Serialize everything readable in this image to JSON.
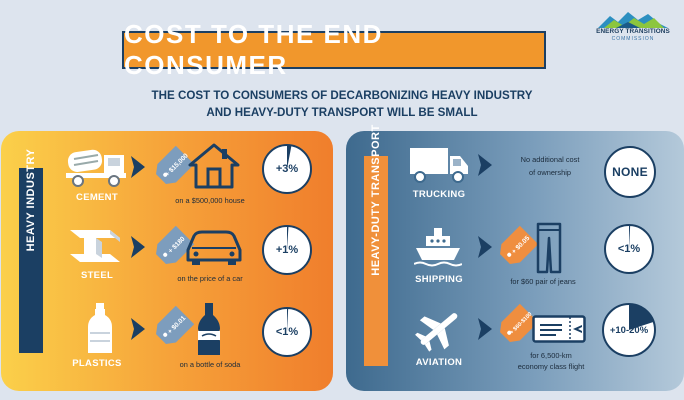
{
  "logo": {
    "line1": "ENERGY TRANSITIONS",
    "line2": "COMMISSION"
  },
  "title": "COST TO THE END CONSUMER",
  "subtitle": {
    "line1": "THE COST TO CONSUMERS OF DECARBONIZING HEAVY INDUSTRY",
    "line2": "AND HEAVY-DUTY TRANSPORT WILL BE SMALL"
  },
  "heavy_industry": {
    "label": "HEAVY INDUSTRY",
    "rows": [
      {
        "name": "CEMENT",
        "icon": "cement-mixer-truck-icon",
        "target_icon": "house-icon",
        "tag": "+ $15,000",
        "desc": "on a $500,000 house",
        "pct_label": "+3%",
        "fraction": 0.03
      },
      {
        "name": "STEEL",
        "icon": "steel-beam-icon",
        "target_icon": "car-icon",
        "tag": "+ $180",
        "desc": "on the price of a car",
        "pct_label": "+1%",
        "fraction": 0.01
      },
      {
        "name": "PLASTICS",
        "icon": "plastic-bottle-icon",
        "target_icon": "soda-bottle-icon",
        "tag": "+ $0.01",
        "desc": "on a bottle of soda",
        "pct_label": "<1%",
        "fraction": 0.008
      }
    ]
  },
  "heavy_duty_transport": {
    "label": "HEAVY-DUTY TRANSPORT",
    "rows": [
      {
        "name": "TRUCKING",
        "icon": "truck-icon",
        "desc1": "No additional cost",
        "desc2": "of ownership",
        "pct_label": "NONE",
        "fraction": 0
      },
      {
        "name": "SHIPPING",
        "icon": "ship-icon",
        "target_icon": "jeans-icon",
        "tag": "+ $0.05",
        "desc1": "for $60 pair of jeans",
        "desc2": "",
        "pct_label": "<1%",
        "fraction": 0.008
      },
      {
        "name": "AVIATION",
        "icon": "airplane-icon",
        "target_icon": "boarding-pass-icon",
        "tag": "+ $60-$100",
        "desc1": "for 6,500-km",
        "desc2": "economy class flight",
        "pct_label": "+10-20%",
        "fraction": 0.2
      }
    ]
  },
  "colors": {
    "navy": "#1b3f63",
    "orange": "#f1972c",
    "tag_blue": "#7d9dbd",
    "tag_orange": "#ef8e3f"
  }
}
